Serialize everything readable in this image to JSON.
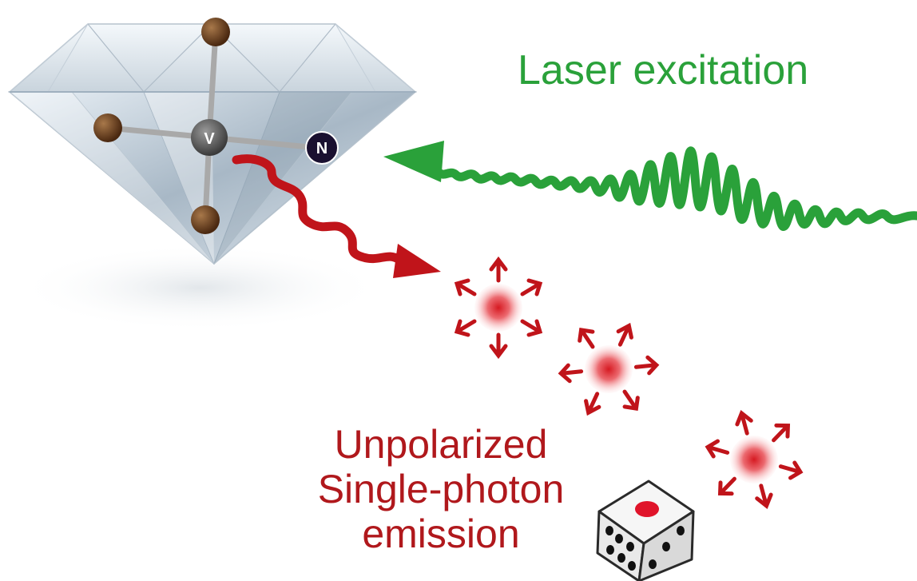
{
  "labels": {
    "laser": "Laser excitation",
    "emission_line1": "Unpolarized",
    "emission_line2": "Single-photon",
    "emission_line3": "emission"
  },
  "atoms": {
    "vacancy": "V",
    "nitrogen": "N"
  },
  "colors": {
    "laser_green": "#2aa13a",
    "emission_red": "#b0181c",
    "carbon_brown": "#6b3e1e",
    "vacancy_gray": "#5a5a5a",
    "nitrogen_dark": "#1a1030",
    "diamond_light": "#eef4fa"
  },
  "icons": {
    "diamond": "diamond-gem-icon",
    "photon": "photon-burst-icon",
    "dice": "dice-icon"
  }
}
